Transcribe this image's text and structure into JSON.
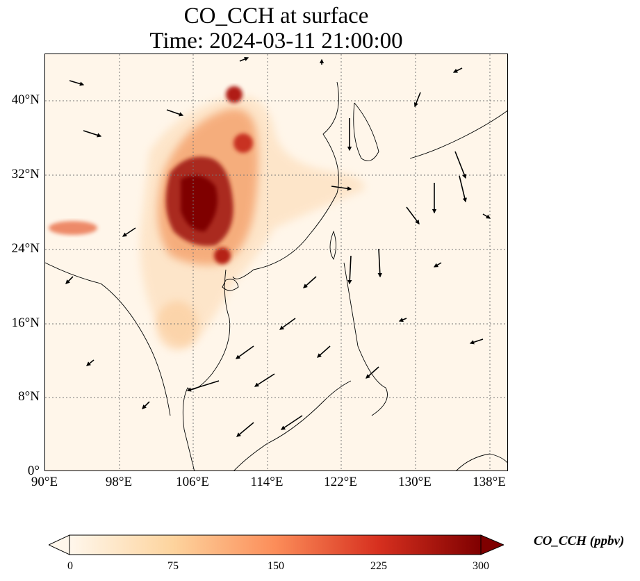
{
  "title": {
    "line1": "CO_CCH at surface",
    "line2": "Time: 2024-03-11 21:00:00"
  },
  "map": {
    "variable": "CO_CCH",
    "level": "surface",
    "colormap": "OrRd",
    "lon_range": [
      90,
      140
    ],
    "lat_range": [
      0,
      45
    ],
    "gridlines": true,
    "lat_ticks": [
      "40°N",
      "32°N",
      "24°N",
      "16°N",
      "8°N",
      "0°"
    ],
    "lon_ticks": [
      "90°E",
      "98°E",
      "106°E",
      "114°E",
      "122°E",
      "130°E",
      "138°E"
    ],
    "wind_vectors": true
  },
  "colorbar": {
    "label": "CO_CCH (ppbv)",
    "min": 0,
    "max": 300,
    "ticks": [
      "0",
      "75",
      "150",
      "225",
      "300"
    ],
    "colors": [
      "#fff7ec",
      "#fdd49e",
      "#fc8d59",
      "#d7301f",
      "#7f0000"
    ],
    "extend": "both"
  }
}
